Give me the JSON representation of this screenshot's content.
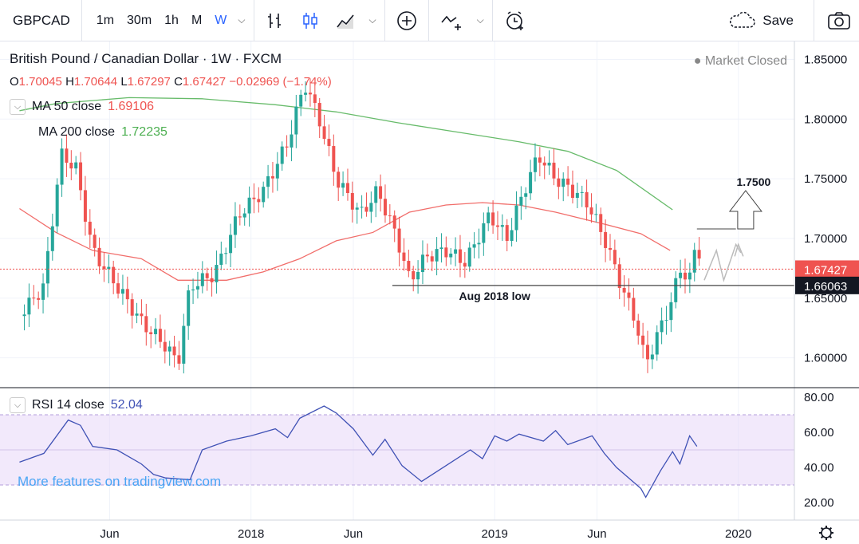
{
  "toolbar": {
    "symbol": "GBPCAD",
    "timeframes": [
      "1m",
      "30m",
      "1h",
      "M",
      "W"
    ],
    "active_timeframe": "W",
    "save_label": "Save"
  },
  "legend": {
    "title": "British Pound / Canadian Dollar · 1W · FXCM",
    "market_status": "Market Closed",
    "ohlc": {
      "o": "1.70045",
      "h": "1.70644",
      "l": "1.67297",
      "c": "1.67427",
      "chg": "−0.02969 (−1.74%)"
    },
    "ma50": {
      "label": "MA 50 close",
      "value": "1.69106",
      "color": "#ef5350"
    },
    "ma200": {
      "label": "MA 200 close",
      "value": "1.72235",
      "color": "#4caf50"
    },
    "rsi": {
      "label": "RSI 14 close",
      "value": "52.04",
      "color": "#3f51b5"
    },
    "watermark": "More features on tradingview.com"
  },
  "annotations": {
    "target": "1.7500",
    "support": "Aug 2018 low"
  },
  "axis": {
    "price_ticks": [
      "1.85000",
      "1.80000",
      "1.75000",
      "1.70000",
      "1.60000"
    ],
    "price_partial": "1.65000",
    "last_price": "1.67427",
    "support_price": "1.66063",
    "rsi_ticks": [
      "80.00",
      "60.00",
      "40.00",
      "20.00"
    ],
    "time_ticks": [
      "Jun",
      "2018",
      "Jun",
      "2019",
      "Jun",
      "2020"
    ]
  },
  "colors": {
    "up": "#26a69a",
    "down": "#ef5350",
    "ma50": "#ef5350",
    "ma200": "#4caf50",
    "rsi": "#3f51b5",
    "rsi_band": "#e7d7f7"
  },
  "chart_data": {
    "type": "candlestick",
    "timeframe": "1W",
    "ylim": [
      1.575,
      1.865
    ],
    "grid": true,
    "price_levels": [
      1.66063,
      1.67427
    ],
    "ma50": [
      [
        2017.05,
        1.725
      ],
      [
        2017.2,
        1.705
      ],
      [
        2017.35,
        1.69
      ],
      [
        2017.55,
        1.683
      ],
      [
        2017.7,
        1.665
      ],
      [
        2017.9,
        1.665
      ],
      [
        2018.05,
        1.672
      ],
      [
        2018.2,
        1.683
      ],
      [
        2018.35,
        1.698
      ],
      [
        2018.5,
        1.705
      ],
      [
        2018.65,
        1.722
      ],
      [
        2018.8,
        1.728
      ],
      [
        2018.95,
        1.73
      ],
      [
        2019.1,
        1.728
      ],
      [
        2019.25,
        1.722
      ],
      [
        2019.45,
        1.712
      ],
      [
        2019.6,
        1.704
      ],
      [
        2019.72,
        1.69
      ]
    ],
    "ma200": [
      [
        2017.05,
        1.807
      ],
      [
        2017.2,
        1.813
      ],
      [
        2017.5,
        1.818
      ],
      [
        2017.8,
        1.817
      ],
      [
        2018.1,
        1.812
      ],
      [
        2018.35,
        1.806
      ],
      [
        2018.6,
        1.797
      ],
      [
        2018.85,
        1.789
      ],
      [
        2019.1,
        1.781
      ],
      [
        2019.3,
        1.773
      ],
      [
        2019.5,
        1.757
      ],
      [
        2019.73,
        1.724
      ]
    ],
    "rsi": [
      [
        2017.05,
        43
      ],
      [
        2017.15,
        48
      ],
      [
        2017.25,
        67
      ],
      [
        2017.3,
        64
      ],
      [
        2017.35,
        52
      ],
      [
        2017.45,
        50
      ],
      [
        2017.55,
        42
      ],
      [
        2017.6,
        36
      ],
      [
        2017.65,
        34
      ],
      [
        2017.75,
        33
      ],
      [
        2017.8,
        50
      ],
      [
        2017.9,
        55
      ],
      [
        2018.0,
        58
      ],
      [
        2018.1,
        62
      ],
      [
        2018.15,
        57
      ],
      [
        2018.2,
        68
      ],
      [
        2018.3,
        75
      ],
      [
        2018.35,
        71
      ],
      [
        2018.42,
        62
      ],
      [
        2018.5,
        47
      ],
      [
        2018.55,
        56
      ],
      [
        2018.62,
        41
      ],
      [
        2018.7,
        32
      ],
      [
        2018.8,
        41
      ],
      [
        2018.9,
        50
      ],
      [
        2018.95,
        45
      ],
      [
        2019.0,
        58
      ],
      [
        2019.05,
        55
      ],
      [
        2019.1,
        59
      ],
      [
        2019.2,
        55
      ],
      [
        2019.25,
        61
      ],
      [
        2019.3,
        53
      ],
      [
        2019.4,
        58
      ],
      [
        2019.45,
        48
      ],
      [
        2019.5,
        40
      ],
      [
        2019.6,
        28
      ],
      [
        2019.62,
        23
      ],
      [
        2019.68,
        38
      ],
      [
        2019.73,
        49
      ],
      [
        2019.76,
        42
      ],
      [
        2019.8,
        58
      ],
      [
        2019.83,
        52
      ]
    ],
    "rsi_band": [
      30,
      70
    ],
    "rsi_ylim": [
      10,
      85
    ]
  }
}
